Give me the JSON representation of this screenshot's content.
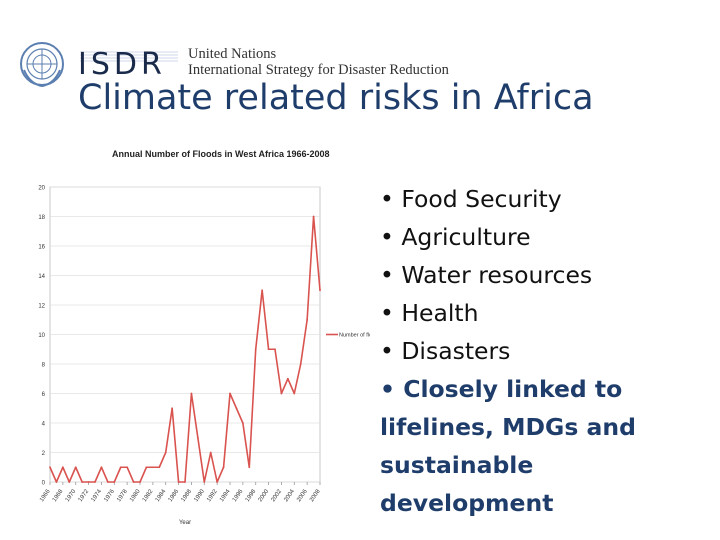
{
  "header": {
    "logo_icon": "un-emblem-icon",
    "acronym": "ISDR",
    "org_line1": "United Nations",
    "org_line2": "International Strategy for Disaster Reduction"
  },
  "slide": {
    "title": "Climate related risks in Africa",
    "bullets": [
      "• Food Security",
      "• Agriculture",
      "• Water resources",
      "• Health",
      "• Disasters"
    ],
    "emphasis": "• Closely linked to lifelines, MDGs and sustainable development"
  },
  "chart_data": {
    "type": "line",
    "title": "Annual Number of Floods in West Africa 1966-2008",
    "xlabel": "Year",
    "ylabel": "",
    "ylim": [
      0,
      20
    ],
    "yticks": [
      0,
      2,
      4,
      6,
      8,
      10,
      12,
      14,
      16,
      18,
      20
    ],
    "xtick_labels": [
      "1966",
      "1968",
      "1970",
      "1972",
      "1974",
      "1976",
      "1978",
      "1980",
      "1982",
      "1984",
      "1986",
      "1988",
      "1990",
      "1992",
      "1994",
      "1996",
      "1998",
      "2000",
      "2002",
      "2004",
      "2006",
      "2008"
    ],
    "legend_position": "right",
    "color": "#d9534f",
    "series": [
      {
        "name": "Number of floods",
        "x": [
          1966,
          1967,
          1968,
          1969,
          1970,
          1971,
          1972,
          1973,
          1974,
          1975,
          1976,
          1977,
          1978,
          1979,
          1980,
          1981,
          1982,
          1983,
          1984,
          1985,
          1986,
          1987,
          1988,
          1989,
          1990,
          1991,
          1992,
          1993,
          1994,
          1995,
          1996,
          1997,
          1998,
          1999,
          2000,
          2001,
          2002,
          2003,
          2004,
          2005,
          2006,
          2007,
          2008
        ],
        "values": [
          1,
          0,
          1,
          0,
          1,
          0,
          0,
          0,
          1,
          0,
          0,
          1,
          1,
          0,
          0,
          1,
          1,
          1,
          2,
          5,
          0,
          0,
          6,
          3,
          0,
          2,
          0,
          1,
          6,
          5,
          4,
          1,
          9,
          13,
          9,
          9,
          6,
          7,
          6,
          8,
          11,
          18,
          13
        ]
      }
    ]
  }
}
